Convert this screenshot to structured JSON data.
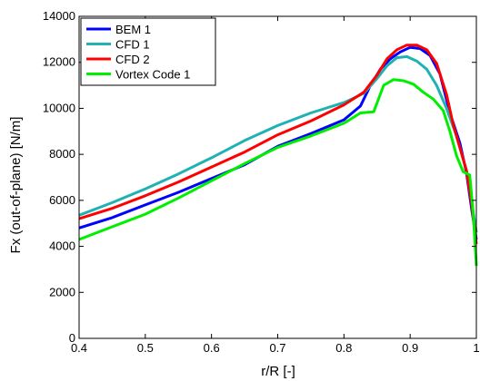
{
  "chart_data": {
    "type": "line",
    "title": "",
    "xlabel": "r/R [-]",
    "ylabel": "Fx (out-of-plane) [N/m]",
    "xlim": [
      0.4,
      1.0
    ],
    "ylim": [
      0,
      14000
    ],
    "xticks": [
      0.4,
      0.5,
      0.6,
      0.7,
      0.8,
      0.9,
      1.0
    ],
    "xtick_labels": [
      "0.4",
      "0.5",
      "0.6",
      "0.7",
      "0.8",
      "0.9",
      "1"
    ],
    "yticks": [
      0,
      2000,
      4000,
      6000,
      8000,
      10000,
      12000,
      14000
    ],
    "ytick_labels": [
      "0",
      "2000",
      "4000",
      "6000",
      "8000",
      "10000",
      "12000",
      "14000"
    ],
    "grid": false,
    "legend_position": "top-left",
    "series": [
      {
        "name": "BEM 1",
        "color": "#0000ff",
        "points": [
          [
            0.4,
            4800
          ],
          [
            0.45,
            5250
          ],
          [
            0.5,
            5800
          ],
          [
            0.55,
            6350
          ],
          [
            0.6,
            6950
          ],
          [
            0.65,
            7550
          ],
          [
            0.7,
            8350
          ],
          [
            0.75,
            8900
          ],
          [
            0.8,
            9500
          ],
          [
            0.825,
            10100
          ],
          [
            0.84,
            11000
          ],
          [
            0.855,
            11700
          ],
          [
            0.87,
            12150
          ],
          [
            0.885,
            12450
          ],
          [
            0.9,
            12650
          ],
          [
            0.915,
            12600
          ],
          [
            0.93,
            12300
          ],
          [
            0.945,
            11500
          ],
          [
            0.96,
            9800
          ],
          [
            0.975,
            8500
          ],
          [
            0.985,
            7200
          ],
          [
            0.993,
            5600
          ],
          [
            1.0,
            4300
          ]
        ]
      },
      {
        "name": "CFD 1",
        "color": "#20b2b2",
        "points": [
          [
            0.4,
            5350
          ],
          [
            0.45,
            5900
          ],
          [
            0.5,
            6500
          ],
          [
            0.55,
            7150
          ],
          [
            0.6,
            7850
          ],
          [
            0.65,
            8600
          ],
          [
            0.7,
            9250
          ],
          [
            0.75,
            9800
          ],
          [
            0.8,
            10250
          ],
          [
            0.83,
            10650
          ],
          [
            0.85,
            11300
          ],
          [
            0.865,
            11850
          ],
          [
            0.88,
            12200
          ],
          [
            0.895,
            12250
          ],
          [
            0.91,
            12050
          ],
          [
            0.925,
            11700
          ],
          [
            0.94,
            11000
          ],
          [
            0.955,
            10000
          ],
          [
            0.97,
            8800
          ],
          [
            0.985,
            7300
          ],
          [
            0.993,
            5900
          ],
          [
            1.0,
            4600
          ]
        ]
      },
      {
        "name": "CFD 2",
        "color": "#ff0000",
        "points": [
          [
            0.4,
            5200
          ],
          [
            0.45,
            5650
          ],
          [
            0.5,
            6200
          ],
          [
            0.55,
            6800
          ],
          [
            0.6,
            7450
          ],
          [
            0.65,
            8100
          ],
          [
            0.7,
            8850
          ],
          [
            0.75,
            9450
          ],
          [
            0.8,
            10150
          ],
          [
            0.83,
            10700
          ],
          [
            0.85,
            11450
          ],
          [
            0.865,
            12150
          ],
          [
            0.88,
            12550
          ],
          [
            0.895,
            12750
          ],
          [
            0.91,
            12750
          ],
          [
            0.925,
            12550
          ],
          [
            0.94,
            11950
          ],
          [
            0.955,
            10600
          ],
          [
            0.965,
            9300
          ],
          [
            0.975,
            8300
          ],
          [
            0.985,
            7300
          ],
          [
            0.993,
            5800
          ],
          [
            1.0,
            4100
          ]
        ]
      },
      {
        "name": "Vortex Code 1",
        "color": "#00ee00",
        "points": [
          [
            0.4,
            4300
          ],
          [
            0.45,
            4850
          ],
          [
            0.5,
            5400
          ],
          [
            0.55,
            6100
          ],
          [
            0.6,
            6850
          ],
          [
            0.65,
            7600
          ],
          [
            0.7,
            8300
          ],
          [
            0.75,
            8800
          ],
          [
            0.8,
            9350
          ],
          [
            0.825,
            9800
          ],
          [
            0.845,
            9850
          ],
          [
            0.86,
            11000
          ],
          [
            0.875,
            11250
          ],
          [
            0.89,
            11200
          ],
          [
            0.905,
            11050
          ],
          [
            0.92,
            10700
          ],
          [
            0.935,
            10400
          ],
          [
            0.95,
            9900
          ],
          [
            0.96,
            9000
          ],
          [
            0.97,
            7950
          ],
          [
            0.98,
            7250
          ],
          [
            0.99,
            7100
          ],
          [
            0.995,
            5500
          ],
          [
            1.0,
            3150
          ]
        ]
      }
    ]
  }
}
